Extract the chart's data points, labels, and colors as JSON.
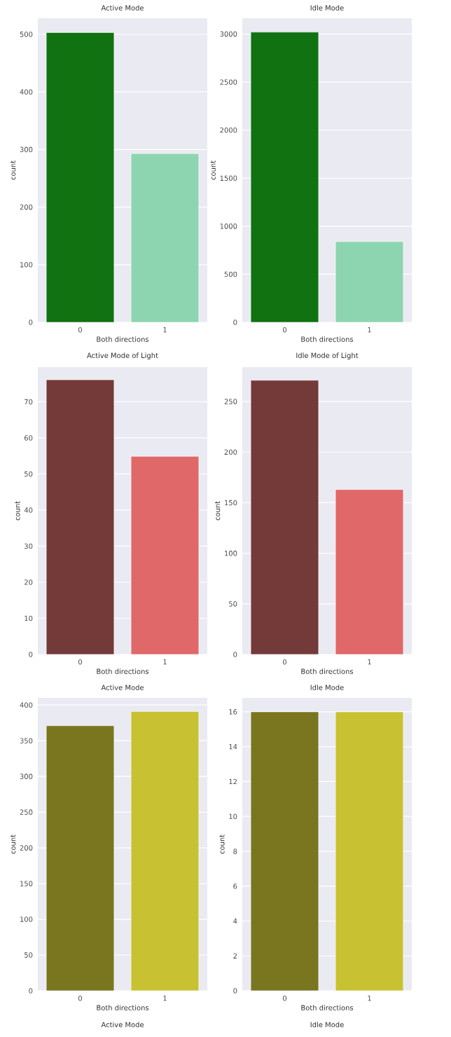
{
  "chart_data": [
    {
      "type": "bar",
      "title": "Active Mode",
      "xlabel": "Both directions",
      "ylabel": "count",
      "categories": [
        "0",
        "1"
      ],
      "values": [
        503,
        293
      ],
      "colors": [
        "#107210",
        "#8dd5b0"
      ],
      "ylim": [
        0,
        528
      ],
      "yticks": [
        0,
        100,
        200,
        300,
        400,
        500
      ],
      "grid": "y"
    },
    {
      "type": "bar",
      "title": "Idle Mode",
      "xlabel": "Both directions",
      "ylabel": "count",
      "categories": [
        "0",
        "1"
      ],
      "values": [
        3020,
        840
      ],
      "colors": [
        "#107210",
        "#8dd5b0"
      ],
      "ylim": [
        0,
        3165
      ],
      "yticks": [
        0,
        500,
        1000,
        1500,
        2000,
        2500,
        3000
      ],
      "grid": "y"
    },
    {
      "type": "bar",
      "title": "Active Mode of Light",
      "xlabel": "Both directions",
      "ylabel": "count",
      "categories": [
        "0",
        "1"
      ],
      "values": [
        76.1,
        54.9
      ],
      "colors": [
        "#743a3a",
        "#e06868"
      ],
      "ylim": [
        0,
        79.6
      ],
      "yticks": [
        0,
        10,
        20,
        30,
        40,
        50,
        60,
        70
      ],
      "grid": "y"
    },
    {
      "type": "bar",
      "title": "Idle Mode of Light",
      "xlabel": "Both directions",
      "ylabel": "count",
      "categories": [
        "0",
        "1"
      ],
      "values": [
        271,
        163
      ],
      "colors": [
        "#743a3a",
        "#e06868"
      ],
      "ylim": [
        0,
        284
      ],
      "yticks": [
        0,
        50,
        100,
        150,
        200,
        250
      ],
      "grid": "y"
    },
    {
      "type": "bar",
      "title": "Active Mode",
      "xlabel": "Both directions",
      "ylabel": "count",
      "categories": [
        "0",
        "1"
      ],
      "values": [
        371,
        391
      ],
      "colors": [
        "#7a7620",
        "#c8c232"
      ],
      "ylim": [
        0,
        410
      ],
      "yticks": [
        0,
        50,
        100,
        150,
        200,
        250,
        300,
        350,
        400
      ],
      "grid": "y"
    },
    {
      "type": "bar",
      "title": "Idle Mode",
      "xlabel": "Both directions",
      "ylabel": "count",
      "categories": [
        "0",
        "1"
      ],
      "values": [
        16,
        16
      ],
      "colors": [
        "#7a7620",
        "#c8c232"
      ],
      "ylim": [
        0,
        16.8
      ],
      "yticks": [
        0,
        2,
        4,
        6,
        8,
        10,
        12,
        14,
        16
      ],
      "grid": "y"
    },
    {
      "type": "other",
      "title": "Active Mode"
    },
    {
      "type": "other",
      "title": "Idle Mode"
    }
  ]
}
